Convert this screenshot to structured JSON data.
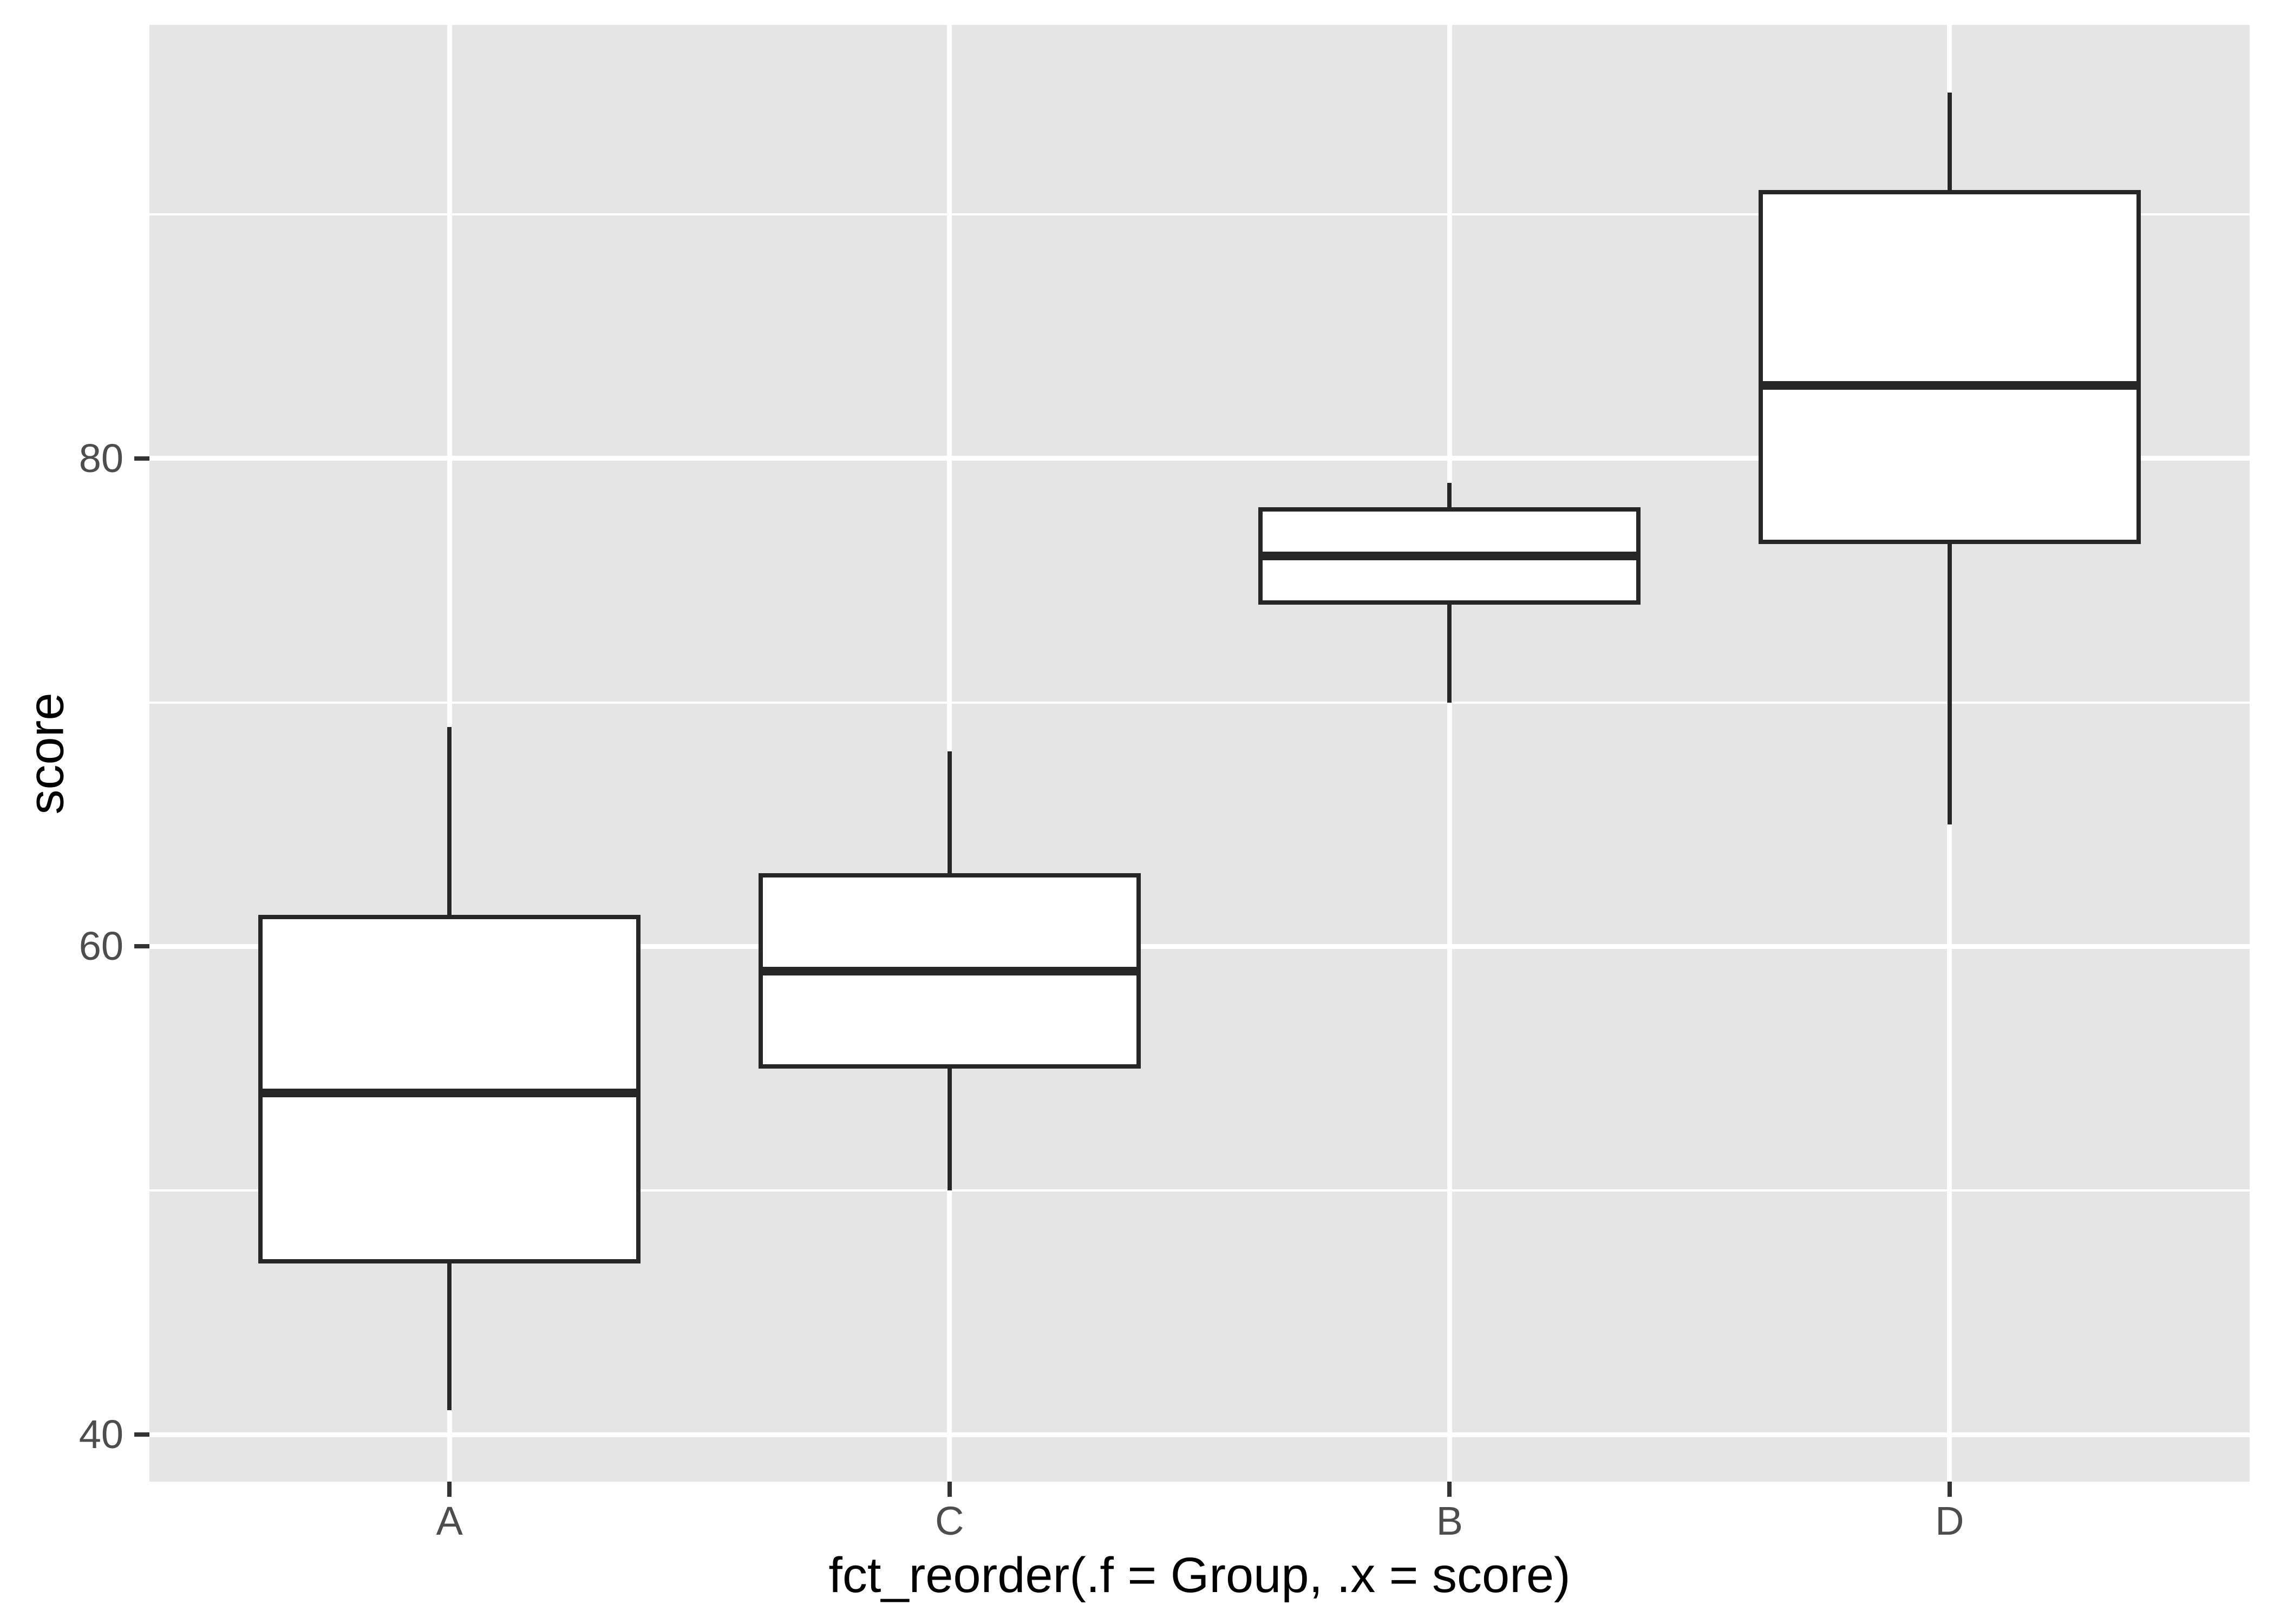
{
  "chart_data": {
    "type": "boxplot",
    "title": "",
    "xlabel": "fct_reorder(.f = Group, .x = score)",
    "ylabel": "score",
    "categories": [
      "A",
      "C",
      "B",
      "D"
    ],
    "series": [
      {
        "name": "A",
        "whisker_low": 41,
        "q1": 47,
        "median": 54,
        "q3": 61.3,
        "whisker_high": 69
      },
      {
        "name": "C",
        "whisker_low": 50,
        "q1": 55,
        "median": 59,
        "q3": 63,
        "whisker_high": 68
      },
      {
        "name": "B",
        "whisker_low": 70,
        "q1": 74,
        "median": 76,
        "q3": 78,
        "whisker_high": 79
      },
      {
        "name": "D",
        "whisker_low": 65,
        "q1": 76.5,
        "median": 83,
        "q3": 91,
        "whisker_high": 95
      }
    ],
    "y_ticks": [
      "40",
      "60",
      "80"
    ],
    "y_minor_ticks": [
      50,
      70,
      90
    ],
    "ylim": [
      38.07,
      97.77
    ],
    "grid": "on",
    "legend": "none",
    "layout_hints": {
      "box_width_frac": 0.182,
      "category_slots": 4.2,
      "category_offset": 0.6
    },
    "colors": {
      "panel_bg": "#E5E5E5",
      "grid": "#FFFFFF",
      "box_border": "#262626",
      "box_fill": "#FFFFFF",
      "tick_text": "#4D4D4D",
      "axis_title": "#000000"
    }
  }
}
